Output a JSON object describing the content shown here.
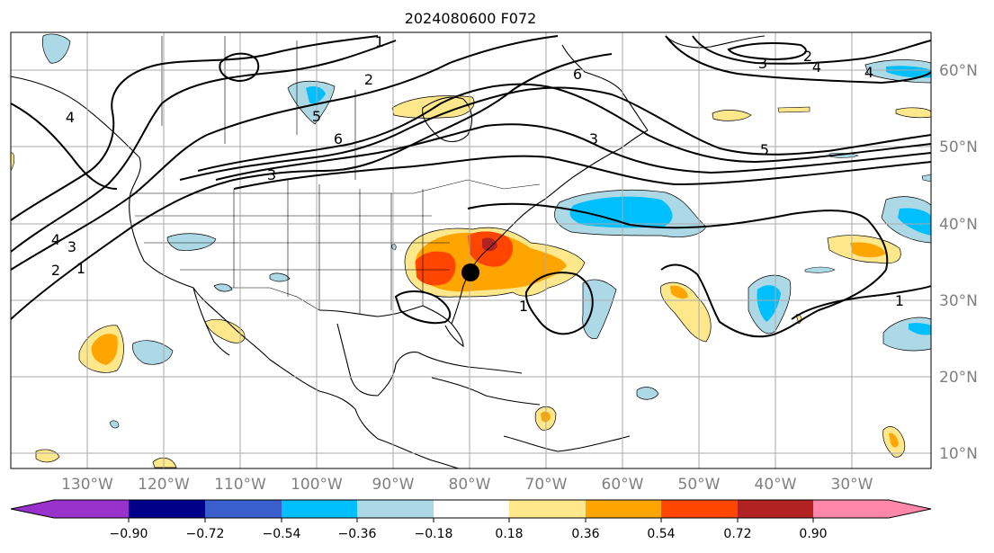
{
  "title": "2024080600 F072",
  "map": {
    "lon_labels": [
      "130°W",
      "120°W",
      "110°W",
      "100°W",
      "90°W",
      "80°W",
      "70°W",
      "60°W",
      "50°W",
      "40°W",
      "30°W"
    ],
    "lat_labels": [
      "60°N",
      "50°N",
      "40°N",
      "30°N",
      "20°N",
      "10°N"
    ],
    "contour_labels": [
      "1",
      "2",
      "3",
      "4",
      "5",
      "6",
      "1",
      "2",
      "3",
      "4",
      "5",
      "6",
      "3",
      "4",
      "2",
      "3",
      "4",
      "1",
      "1"
    ],
    "grid": true,
    "marker": "storm-center-marker"
  },
  "colorbar": {
    "ticks": [
      "−0.90",
      "−0.72",
      "−0.54",
      "−0.36",
      "−0.18",
      "0.18",
      "0.36",
      "0.54",
      "0.72",
      "0.90"
    ],
    "colors": [
      "#9932cc",
      "#00008b",
      "#3a5fcd",
      "#00bfff",
      "#add8e6",
      "#ffffff",
      "#ffe88c",
      "#ffa500",
      "#ff4500",
      "#b22222",
      "#ff88aa"
    ]
  }
}
